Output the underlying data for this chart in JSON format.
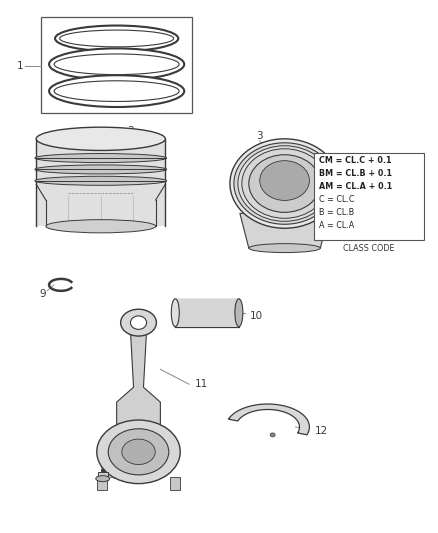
{
  "background_color": "#ffffff",
  "lc": "#3a3a3a",
  "label_fontsize": 7.5,
  "parts_label_color": "#444444",
  "class_code_lines": [
    "A = CL.A",
    "B = CL.B",
    "C = CL.C",
    "AM = CL.A + 0.1",
    "BM = CL.B + 0.1",
    "CM = CL.C + 0.1"
  ],
  "class_code_label": "CLASS CODE"
}
